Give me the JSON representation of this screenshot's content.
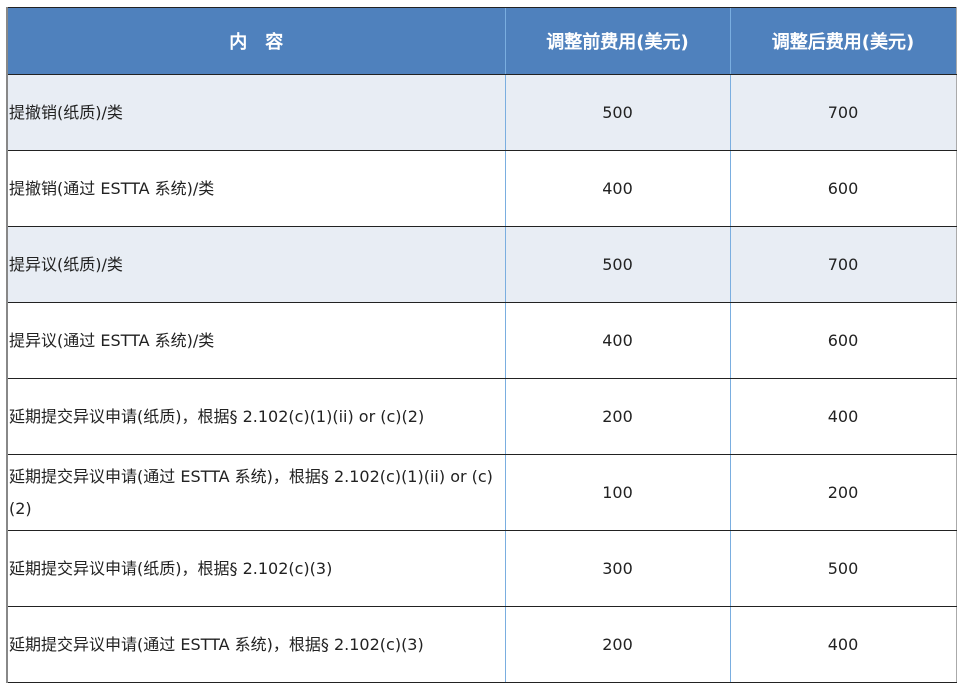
{
  "table": {
    "headers": [
      "内　容",
      "调整前费用(美元)",
      "调整后费用(美元)"
    ],
    "rows": [
      {
        "item": "提撤销(纸质)/类",
        "before": "500",
        "after": "700",
        "shaded": true
      },
      {
        "item": "提撤销(通过 ESTTA 系统)/类",
        "before": "400",
        "after": "600",
        "shaded": false
      },
      {
        "item": "提异议(纸质)/类",
        "before": "500",
        "after": "700",
        "shaded": true
      },
      {
        "item": "提异议(通过 ESTTA 系统)/类",
        "before": "400",
        "after": "600",
        "shaded": false
      },
      {
        "item": "延期提交异议申请(纸质)，根据§ 2.102(c)(1)(ii) or (c)(2)",
        "before": "200",
        "after": "400",
        "shaded": false
      },
      {
        "item": "延期提交异议申请(通过 ESTTA 系统)，根据§ 2.102(c)(1)(ii) or (c)(2)",
        "before": "100",
        "after": "200",
        "shaded": false
      },
      {
        "item": "延期提交异议申请(纸质)，根据§ 2.102(c)(3)",
        "before": "300",
        "after": "500",
        "shaded": false
      },
      {
        "item": "延期提交异议申请(通过 ESTTA 系统)，根据§ 2.102(c)(3)",
        "before": "200",
        "after": "400",
        "shaded": false
      }
    ],
    "colors": {
      "header": "#4f81bd",
      "shade": "#e8edf4"
    }
  }
}
